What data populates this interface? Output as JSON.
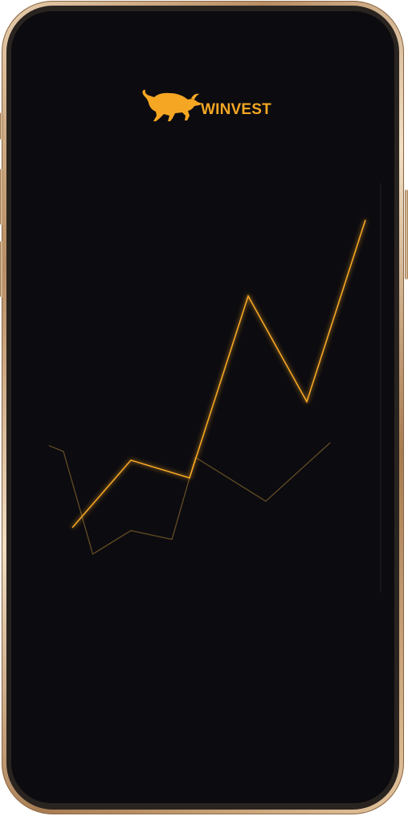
{
  "brand": {
    "name": "WINVEST",
    "accent_color": "#f5a623",
    "logo_icon": "bull-icon"
  },
  "screen": {
    "background": "#0c0b10"
  },
  "chart_data": {
    "type": "line",
    "grid": true,
    "series": [
      {
        "color": "#f5a623",
        "style": "glow",
        "x": [
          0,
          1,
          2,
          3,
          4,
          5
        ],
        "values": [
          0,
          1.15,
          0.85,
          3.95,
          2.15,
          5.25
        ]
      },
      {
        "color": "#6b5326",
        "style": "faint",
        "x": [
          -0.4,
          -0.15,
          0.35,
          1.0,
          1.7,
          2.1,
          3.3,
          4.4
        ],
        "values": [
          1.4,
          1.3,
          -0.45,
          -0.05,
          -0.2,
          1.2,
          0.45,
          1.45
        ]
      }
    ]
  }
}
